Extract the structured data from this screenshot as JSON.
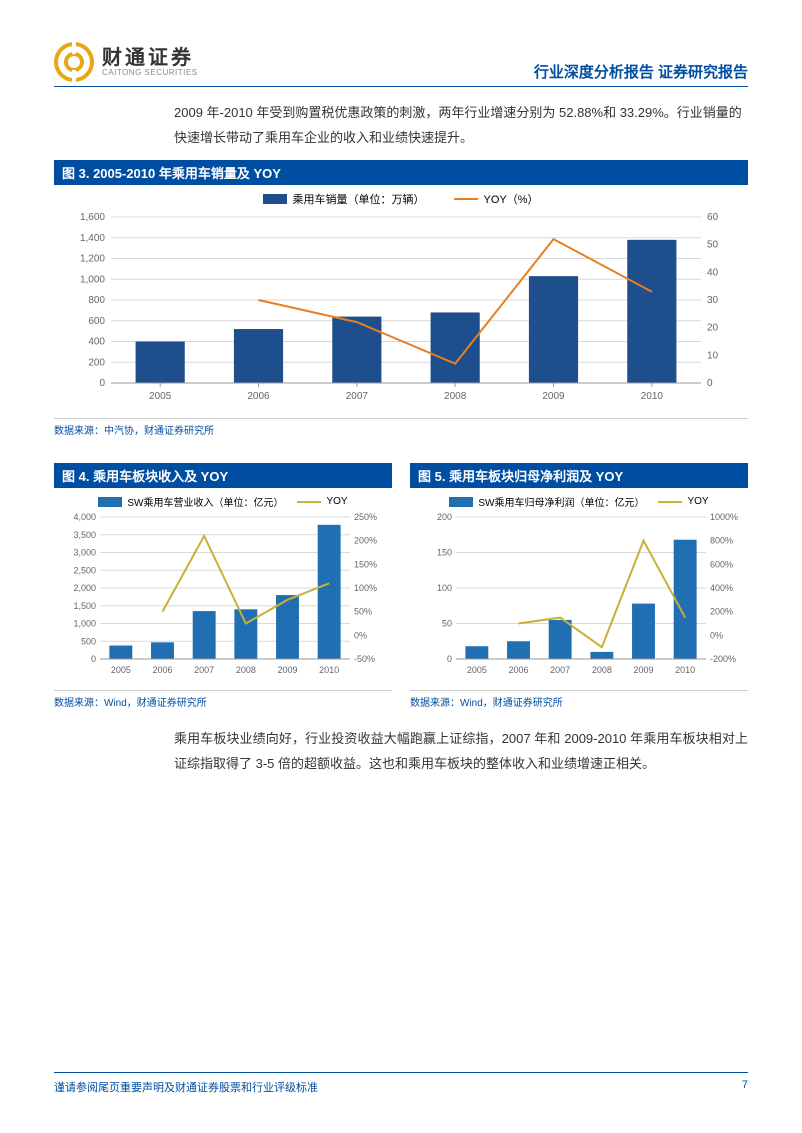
{
  "header": {
    "logo_cn": "财通证券",
    "logo_en": "CAITONG SECURITIES",
    "report_type": "行业深度分析报告 证券研究报告"
  },
  "para1": "2009 年-2010 年受到购置税优惠政策的刺激，两年行业增速分别为 52.88%和 33.29%。行业销量的快速增长带动了乘用车企业的收入和业绩快速提升。",
  "fig3": {
    "title": "图 3. 2005-2010 年乘用车销量及 YOY",
    "legend_bar": "乘用车销量（单位：万辆）",
    "legend_line": "YOY（%）",
    "source": "数据来源：中汽协，财通证券研究所",
    "categories": [
      "2005",
      "2006",
      "2007",
      "2008",
      "2009",
      "2010"
    ],
    "bar_values": [
      400,
      520,
      640,
      680,
      1030,
      1380
    ],
    "line_values": [
      null,
      30,
      22,
      7,
      52,
      33
    ],
    "y1_max": 1600,
    "y1_step": 200,
    "y2_max": 60,
    "y2_step": 10,
    "bar_color": "#1f4e8c",
    "line_color": "#e67e22",
    "grid_color": "#d9d9d9",
    "bg": "#ffffff"
  },
  "fig4": {
    "title": "图 4. 乘用车板块收入及 YOY",
    "legend_bar": "SW乘用车营业收入（单位：亿元）",
    "legend_line": "YOY",
    "source": "数据来源：Wind，财通证券研究所",
    "categories": [
      "2005",
      "2006",
      "2007",
      "2008",
      "2009",
      "2010"
    ],
    "bar_values": [
      380,
      470,
      1350,
      1400,
      1800,
      3780
    ],
    "line_values": [
      null,
      50,
      210,
      25,
      75,
      110
    ],
    "y1_max": 4000,
    "y1_step": 500,
    "y2_min": -50,
    "y2_max": 250,
    "y2_step": 50,
    "bar_color": "#1f6fb2",
    "line_color": "#c9b037",
    "grid_color": "#d9d9d9"
  },
  "fig5": {
    "title": "图 5. 乘用车板块归母净利润及 YOY",
    "legend_bar": "SW乘用车归母净利润（单位：亿元）",
    "legend_line": "YOY",
    "source": "数据来源：Wind，财通证券研究所",
    "categories": [
      "2005",
      "2006",
      "2007",
      "2008",
      "2009",
      "2010"
    ],
    "bar_values": [
      18,
      25,
      55,
      10,
      78,
      168
    ],
    "line_values": [
      null,
      100,
      150,
      -100,
      800,
      150
    ],
    "y1_max": 200,
    "y1_step": 50,
    "y2_min": -200,
    "y2_max": 1000,
    "y2_step": 200,
    "bar_color": "#1f6fb2",
    "line_color": "#c9b037",
    "grid_color": "#d9d9d9"
  },
  "para2": "乘用车板块业绩向好，行业投资收益大幅跑赢上证综指，2007 年和 2009-2010 年乘用车板块相对上证综指取得了 3-5 倍的超额收益。这也和乘用车板块的整体收入和业绩增速正相关。",
  "footer": {
    "disclaimer": "谨请参阅尾页重要声明及财通证券股票和行业评级标准",
    "page": "7"
  },
  "colors": {
    "brand_blue": "#004ea2",
    "brand_gold": "#e6a817"
  }
}
